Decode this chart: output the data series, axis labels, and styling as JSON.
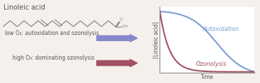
{
  "title_text": "Linoleic acid",
  "title_fontsize": 7,
  "low_o3_text": "low O₃: autoxidation and ozonolysis",
  "high_o3_text": "high O₃: dominating ozonolysis",
  "label_autoxidation": "Autoxidation",
  "label_ozonolysis": "Ozonolysis",
  "ylabel": "[Linoleic acid]",
  "xlabel": "Time",
  "autoxidation_color": "#7b9cd4",
  "ozonolysis_color": "#a05060",
  "arrow_low_color": "#8888cc",
  "arrow_high_color": "#a05060",
  "background_color": "#f5f0eb",
  "text_color": "#555555",
  "border_color": "#888888",
  "chain_color": "#888888",
  "fontsize_labels": 5.5,
  "fontsize_curve_labels": 6.0,
  "fontsize_axis_labels": 5.5,
  "fontsize_title": 7.0
}
